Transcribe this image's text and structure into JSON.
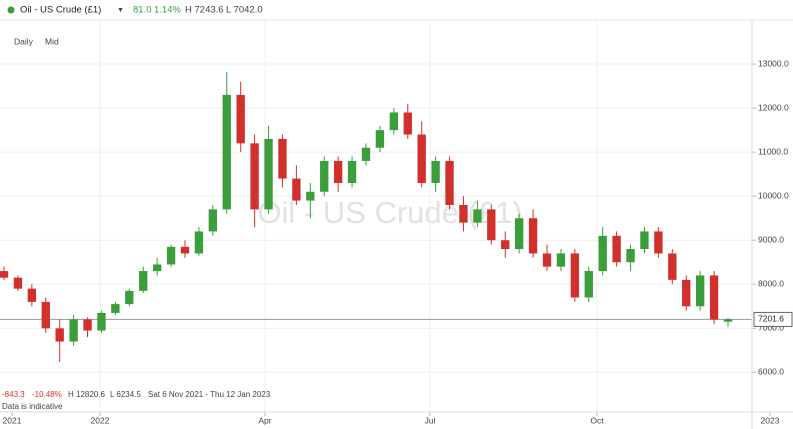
{
  "header": {
    "title": "Oil - US Crude (£1)",
    "arrow": "▼",
    "change": "81.0",
    "change_pct": "1.14%",
    "high": "H 7243.6",
    "low": "L 7042.0"
  },
  "buttons": [
    "Daily",
    "Mid"
  ],
  "footer": {
    "change": "-843.3",
    "change_pct": "-10.48%",
    "high": "H 12820.6",
    "low": "L 6234.5",
    "range": "Sat 6 Nov 2021 - Thu 12 Jan 2023",
    "note": "Data is indicative"
  },
  "chart_data": {
    "type": "candlestick",
    "watermark": "Oil - US Crude (£1)",
    "open": [
      8300,
      8150,
      7900,
      7600,
      7000,
      6700,
      7200,
      6950,
      7350,
      7550,
      7850,
      8300,
      8450,
      8850,
      8700,
      9200,
      9700,
      12300,
      11200,
      9700,
      11300,
      10400,
      9900,
      10100,
      10800,
      10300,
      10800,
      11100,
      11500,
      11900,
      11400,
      10300,
      10800,
      9800,
      9400,
      9700,
      9000,
      8800,
      9500,
      8700,
      8400,
      8700,
      7700,
      8300,
      9100,
      8500,
      8800,
      9200,
      8700,
      8100,
      7500,
      8200,
      7150
    ],
    "high": [
      8400,
      8200,
      8000,
      7700,
      7200,
      7300,
      7250,
      7400,
      7600,
      7900,
      8400,
      8600,
      8900,
      9000,
      9300,
      9800,
      12820.6,
      12600,
      11400,
      11600,
      11400,
      10700,
      10300,
      10900,
      10900,
      10900,
      11200,
      11600,
      12000,
      12100,
      11700,
      10900,
      10900,
      10000,
      9900,
      9800,
      9200,
      9600,
      9700,
      8900,
      8800,
      8800,
      8400,
      9300,
      9200,
      8900,
      9300,
      9300,
      8800,
      8200,
      8300,
      8300,
      7243.6
    ],
    "low": [
      8100,
      7850,
      7500,
      6900,
      6234.5,
      6600,
      6800,
      6900,
      7300,
      7500,
      7800,
      8200,
      8400,
      8600,
      8650,
      9100,
      9600,
      11000,
      9300,
      9600,
      10200,
      9800,
      9500,
      10000,
      10100,
      10200,
      10700,
      11000,
      11400,
      11300,
      10200,
      10100,
      9700,
      9200,
      9300,
      8900,
      8600,
      8700,
      8600,
      8300,
      8300,
      7600,
      7600,
      8200,
      8400,
      8300,
      8700,
      8600,
      8000,
      7400,
      7400,
      7100,
      7042.0
    ],
    "close": [
      8150,
      7900,
      7600,
      7000,
      6700,
      7200,
      6950,
      7350,
      7550,
      7850,
      8300,
      8450,
      8850,
      8700,
      9200,
      9700,
      12300,
      11200,
      9700,
      11300,
      10400,
      9900,
      10100,
      10800,
      10300,
      10800,
      11100,
      11500,
      11900,
      11400,
      10300,
      10800,
      9800,
      9400,
      9700,
      9000,
      8800,
      9500,
      8700,
      8400,
      8700,
      7700,
      8300,
      9100,
      8500,
      8800,
      9200,
      8700,
      8100,
      7500,
      8200,
      7200,
      7201.6
    ],
    "up_color": "#3a9e3a",
    "down_color": "#d0312d",
    "ylim": [
      5100,
      14000
    ],
    "yticks": [
      {
        "value": 6000,
        "label": "6000.0"
      },
      {
        "value": 7000,
        "label": "7000.0"
      },
      {
        "value": 8000,
        "label": "8000.0"
      },
      {
        "value": 9000,
        "label": "9000.0"
      },
      {
        "value": 10000,
        "label": "10000.0"
      },
      {
        "value": 11000,
        "label": "11000.0"
      },
      {
        "value": 12000,
        "label": "12000.0"
      },
      {
        "value": 13000,
        "label": "13000.0"
      }
    ],
    "xtick_labels": [
      "2021",
      "2022",
      "Apr",
      "Jul",
      "Oct",
      "2023"
    ],
    "last_price": {
      "value": 7201.6,
      "label": "7201.6"
    },
    "grid": true
  }
}
